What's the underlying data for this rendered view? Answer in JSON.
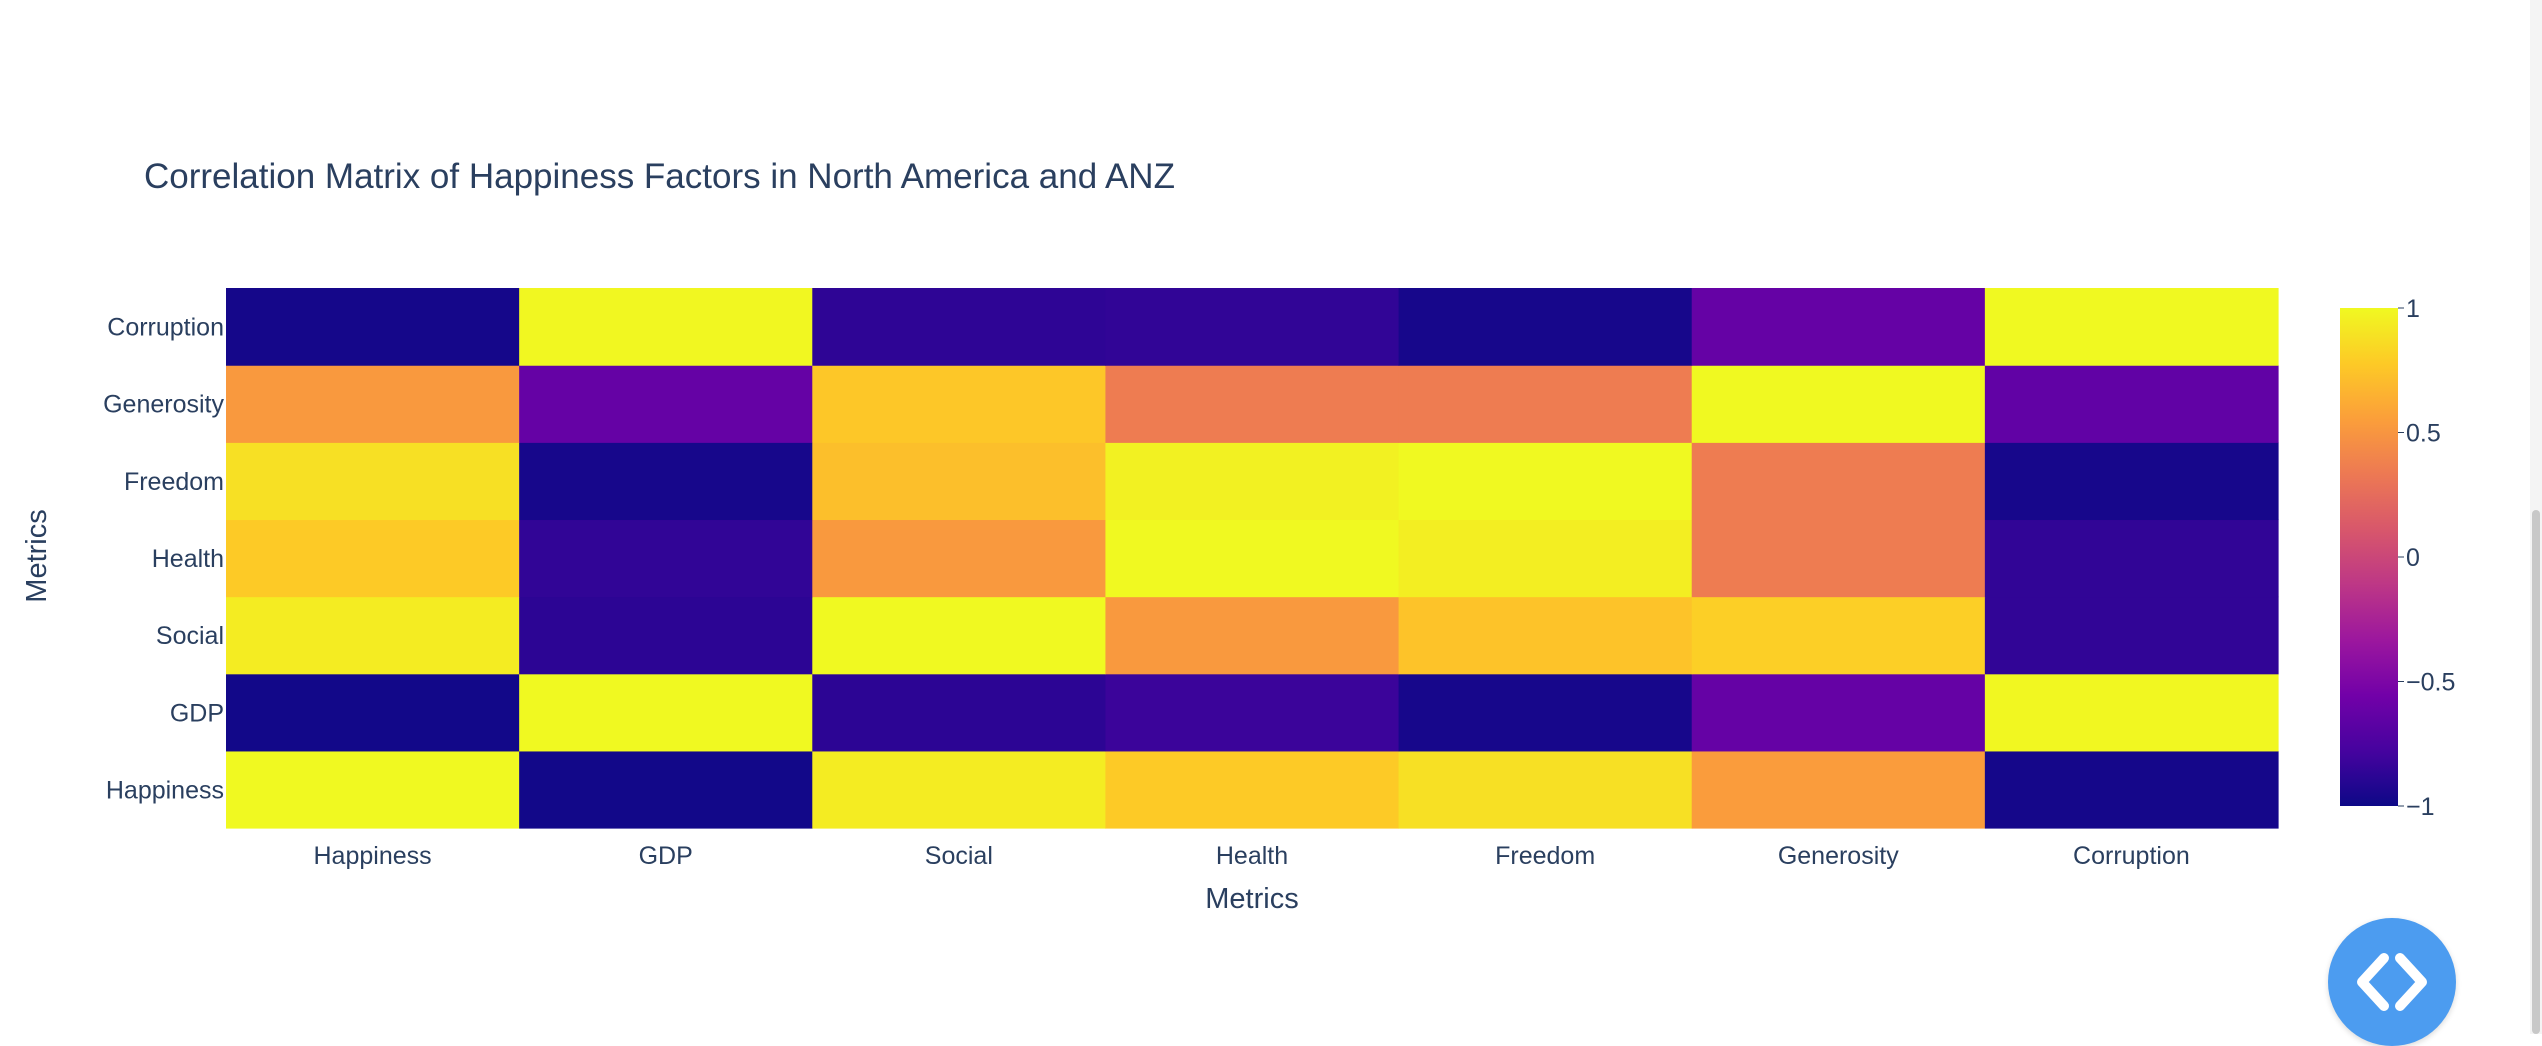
{
  "chart_data": {
    "type": "heatmap",
    "title": "Correlation Matrix of Happiness Factors in North America and ANZ",
    "xlabel": "Metrics",
    "ylabel": "Metrics",
    "x_categories": [
      "Happiness",
      "GDP",
      "Social",
      "Health",
      "Freedom",
      "Generosity",
      "Corruption"
    ],
    "y_categories": [
      "Happiness",
      "GDP",
      "Social",
      "Health",
      "Freedom",
      "Generosity",
      "Corruption"
    ],
    "z": [
      [
        1.0,
        -0.98,
        0.94,
        0.78,
        0.88,
        0.54,
        -0.97
      ],
      [
        -0.98,
        1.0,
        -0.88,
        -0.82,
        -0.96,
        -0.62,
        0.99
      ],
      [
        0.94,
        -0.88,
        1.0,
        0.52,
        0.74,
        0.8,
        -0.86
      ],
      [
        0.78,
        -0.86,
        0.52,
        1.0,
        0.95,
        0.35,
        -0.86
      ],
      [
        0.88,
        -0.96,
        0.72,
        0.96,
        1.0,
        0.35,
        -0.96
      ],
      [
        0.52,
        -0.62,
        0.76,
        0.35,
        0.35,
        1.0,
        -0.64
      ],
      [
        -0.97,
        0.99,
        -0.87,
        -0.86,
        -0.96,
        -0.62,
        1.0
      ]
    ],
    "zmin": -1,
    "zmax": 1,
    "colorscale": "Plasma",
    "colorbar_ticks": [
      {
        "value": 1,
        "label": "1"
      },
      {
        "value": 0.5,
        "label": "0.5"
      },
      {
        "value": 0,
        "label": "0"
      },
      {
        "value": -0.5,
        "label": "−0.5"
      },
      {
        "value": -1,
        "label": "−1"
      }
    ]
  },
  "colors": {
    "text": "#2a3f5f",
    "fab": "#4c9cf0",
    "plasma_stops": [
      "#0d0887",
      "#46039f",
      "#7201a8",
      "#9c179e",
      "#bd3786",
      "#d8576b",
      "#ed7953",
      "#fb9f3a",
      "#fdca26",
      "#f0f921"
    ]
  },
  "icons": {
    "code_button": "code-brackets-icon"
  }
}
